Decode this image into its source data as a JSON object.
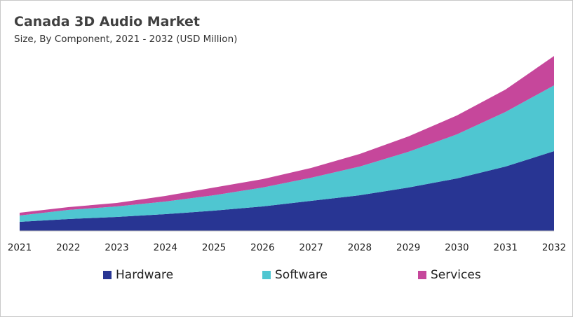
{
  "chart_data": {
    "type": "area",
    "stacked": true,
    "title": "Canada 3D Audio Market",
    "subtitle": "Size, By Component, 2021 - 2032 (USD Million)",
    "xlabel": "",
    "ylabel": "",
    "grid": false,
    "legend_placement": "bottom",
    "categories": [
      "2021",
      "2022",
      "2023",
      "2024",
      "2025",
      "2026",
      "2027",
      "2028",
      "2029",
      "2030",
      "2031",
      "2032"
    ],
    "series": [
      {
        "name": "Hardware",
        "color": "#283593",
        "values": [
          13,
          17,
          20,
          24,
          29,
          35,
          43,
          51,
          62,
          75,
          92,
          114
        ]
      },
      {
        "name": "Software",
        "color": "#4FC6D1",
        "values": [
          9,
          13,
          15,
          18,
          22,
          27,
          33,
          41,
          51,
          63,
          78,
          94
        ]
      },
      {
        "name": "Services",
        "color": "#C6479B",
        "values": [
          4,
          4,
          5,
          8,
          11,
          12,
          14,
          18,
          22,
          27,
          32,
          42
        ]
      }
    ]
  }
}
